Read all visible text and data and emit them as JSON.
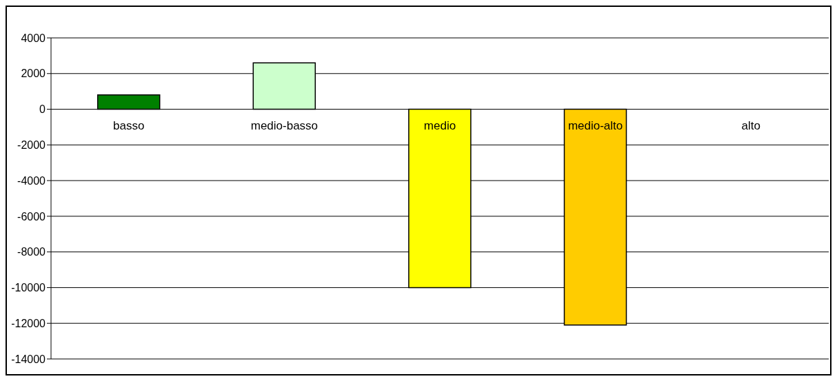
{
  "chart_data": {
    "type": "bar",
    "categories": [
      "basso",
      "medio-basso",
      "medio",
      "medio-alto",
      "alto"
    ],
    "values": [
      800,
      2600,
      -10000,
      -12100,
      null
    ],
    "colors": [
      "#008000",
      "#ccffcc",
      "#ffff00",
      "#ffcc00",
      "#ffcc00"
    ],
    "ylim": [
      -14000,
      4000
    ],
    "yticks": [
      -14000,
      -12000,
      -10000,
      -8000,
      -6000,
      -4000,
      -2000,
      0,
      2000,
      4000
    ],
    "grid": "y",
    "legend": false
  }
}
